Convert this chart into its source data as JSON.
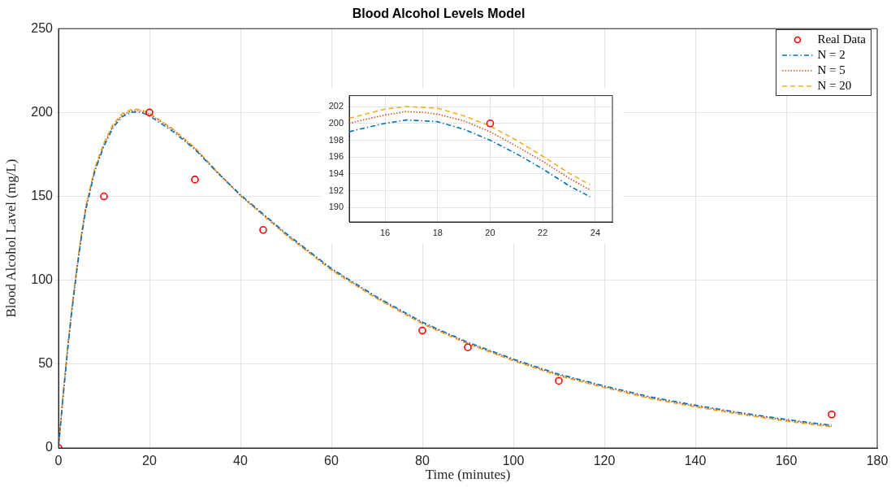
{
  "chart_data": [
    {
      "type": "line",
      "title": "Blood Alcohol Levels Model",
      "xlabel": "Time (minutes)",
      "ylabel": "Blood Alcohol Lavel (mg/L)",
      "xlim": [
        0,
        180
      ],
      "ylim": [
        0,
        250
      ],
      "xticks": [
        0,
        20,
        40,
        60,
        80,
        100,
        120,
        140,
        160,
        180
      ],
      "yticks": [
        0,
        50,
        100,
        150,
        200,
        250
      ],
      "grid": true,
      "legend": "top right",
      "series": [
        {
          "name": "Real Data",
          "type": "scatter",
          "color": "#ff0000",
          "marker": "circle",
          "x": [
            0,
            10,
            20,
            30,
            45,
            80,
            90,
            110,
            170
          ],
          "values": [
            0,
            150,
            200,
            160,
            130,
            70,
            60,
            40,
            20
          ]
        },
        {
          "name": "N = 2",
          "type": "line",
          "color": "#0072bd",
          "line_style": "dashdot",
          "marker": "none",
          "x": [
            0,
            1,
            2,
            3,
            4,
            5,
            6,
            8,
            10,
            12,
            14,
            16,
            17,
            18,
            20,
            25,
            30,
            35,
            40,
            50,
            60,
            70,
            80,
            90,
            100,
            110,
            120,
            130,
            140,
            150,
            160,
            170
          ],
          "values": [
            0,
            30,
            58,
            83,
            105,
            125,
            142,
            165,
            180,
            191,
            197.5,
            200.1,
            200.3,
            200.2,
            198,
            189,
            178,
            164,
            151,
            128,
            107,
            90,
            75,
            63,
            53,
            44,
            37,
            30.5,
            25.5,
            21,
            17,
            13.5
          ]
        },
        {
          "name": "N = 5",
          "type": "line",
          "color": "#d95319",
          "line_style": "dotted",
          "marker": "none",
          "x": [
            0,
            1,
            2,
            3,
            4,
            5,
            6,
            8,
            10,
            12,
            14,
            16,
            17,
            18,
            20,
            25,
            30,
            35,
            40,
            50,
            60,
            70,
            80,
            90,
            100,
            110,
            120,
            130,
            140,
            150,
            160,
            170
          ],
          "values": [
            0,
            31,
            59,
            84,
            106,
            126,
            143,
            166,
            181,
            192,
            198.5,
            201,
            201.3,
            201.1,
            199,
            190,
            178.5,
            164,
            150.5,
            127.5,
            106.5,
            89.5,
            74.5,
            62.5,
            52.5,
            43.5,
            36.5,
            30,
            25,
            20.5,
            16.5,
            13
          ]
        },
        {
          "name": "N = 20",
          "type": "line",
          "color": "#edb120",
          "line_style": "dashed",
          "marker": "none",
          "x": [
            0,
            1,
            2,
            3,
            4,
            5,
            6,
            8,
            10,
            12,
            14,
            16,
            17,
            18,
            20,
            25,
            30,
            35,
            40,
            50,
            60,
            70,
            80,
            90,
            100,
            110,
            120,
            130,
            140,
            150,
            160,
            170
          ],
          "values": [
            0,
            31,
            60,
            85,
            107,
            127,
            144,
            167,
            182,
            193,
            199.3,
            201.7,
            202,
            201.8,
            199.7,
            190.5,
            179,
            164.5,
            150.5,
            127,
            106,
            89,
            74,
            62,
            52,
            43,
            36,
            29.5,
            24.5,
            20,
            16,
            12.5
          ]
        }
      ]
    },
    {
      "type": "line",
      "xlim": [
        14.64,
        24.65
      ],
      "ylim": [
        188.3,
        203.3
      ],
      "xticks": [
        16,
        18,
        20,
        22,
        24
      ],
      "yticks": [
        190,
        192,
        194,
        196,
        198,
        200,
        202
      ],
      "grid": true,
      "series": [
        {
          "type": "scatter",
          "color": "#ff0000",
          "marker": "circle",
          "x": [
            20
          ],
          "values": [
            200
          ]
        },
        {
          "type": "line",
          "color": "#0072bd",
          "line_style": "dashdot",
          "marker": "none",
          "x": [
            14.64,
            15,
            16,
            16.8,
            17.5,
            18,
            19,
            20,
            21,
            22,
            23,
            23.8
          ],
          "values": [
            199.0,
            199.3,
            200.0,
            200.4,
            200.3,
            200.2,
            199.3,
            198.0,
            196.4,
            194.6,
            192.6,
            191.3
          ]
        },
        {
          "type": "line",
          "color": "#d95319",
          "line_style": "dotted",
          "marker": "none",
          "x": [
            14.64,
            15,
            16,
            16.8,
            17.5,
            18,
            19,
            20,
            21,
            22,
            23,
            23.8
          ],
          "values": [
            200.0,
            200.3,
            201.0,
            201.4,
            201.3,
            201.1,
            200.3,
            199.0,
            197.3,
            195.5,
            193.5,
            192.1
          ]
        },
        {
          "type": "line",
          "color": "#edb120",
          "line_style": "dashed",
          "marker": "none",
          "x": [
            14.64,
            15,
            16,
            16.8,
            17.5,
            18,
            19,
            20,
            21,
            22,
            23,
            23.8
          ],
          "values": [
            200.6,
            200.9,
            201.7,
            202.0,
            201.9,
            201.8,
            200.9,
            199.7,
            198.0,
            196.1,
            194.1,
            192.7
          ]
        }
      ]
    }
  ]
}
